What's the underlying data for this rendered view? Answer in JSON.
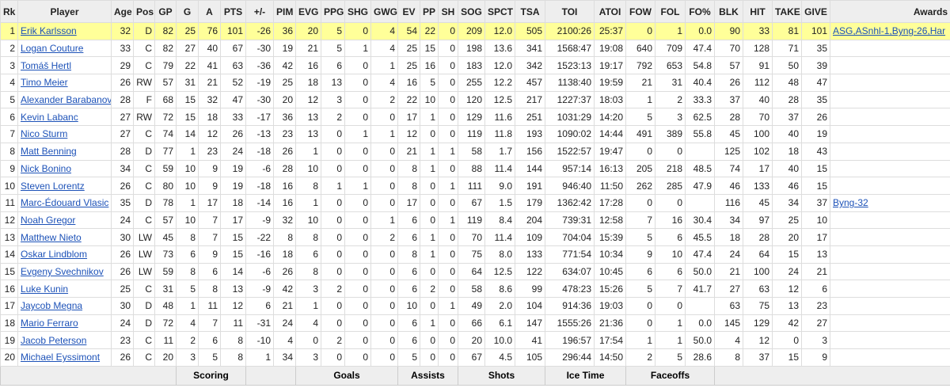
{
  "table": {
    "columns": [
      "Rk",
      "Player",
      "Age",
      "Pos",
      "GP",
      "G",
      "A",
      "PTS",
      "+/-",
      "PIM",
      "EVG",
      "PPG",
      "SHG",
      "GWG",
      "EV",
      "PP",
      "SH",
      "SOG",
      "SPCT",
      "TSA",
      "TOI",
      "ATOI",
      "FOW",
      "FOL",
      "FO%",
      "BLK",
      "HIT",
      "TAKE",
      "GIVE",
      "Awards"
    ],
    "rows": [
      [
        "1",
        "Erik Karlsson",
        "32",
        "D",
        "82",
        "25",
        "76",
        "101",
        "-26",
        "36",
        "20",
        "5",
        "0",
        "4",
        "54",
        "22",
        "0",
        "209",
        "12.0",
        "505",
        "2100:26",
        "25:37",
        "0",
        "1",
        "0.0",
        "90",
        "33",
        "81",
        "101",
        "ASG,ASnhl-1,Byng-26,Har"
      ],
      [
        "2",
        "Logan Couture",
        "33",
        "C",
        "82",
        "27",
        "40",
        "67",
        "-30",
        "19",
        "21",
        "5",
        "1",
        "4",
        "25",
        "15",
        "0",
        "198",
        "13.6",
        "341",
        "1568:47",
        "19:08",
        "640",
        "709",
        "47.4",
        "70",
        "128",
        "71",
        "35",
        null
      ],
      [
        "3",
        "Tomáš Hertl",
        "29",
        "C",
        "79",
        "22",
        "41",
        "63",
        "-36",
        "42",
        "16",
        "6",
        "0",
        "1",
        "25",
        "16",
        "0",
        "183",
        "12.0",
        "342",
        "1523:13",
        "19:17",
        "792",
        "653",
        "54.8",
        "57",
        "91",
        "50",
        "39",
        null
      ],
      [
        "4",
        "Timo Meier",
        "26",
        "RW",
        "57",
        "31",
        "21",
        "52",
        "-19",
        "25",
        "18",
        "13",
        "0",
        "4",
        "16",
        "5",
        "0",
        "255",
        "12.2",
        "457",
        "1138:40",
        "19:59",
        "21",
        "31",
        "40.4",
        "26",
        "112",
        "48",
        "47",
        null
      ],
      [
        "5",
        "Alexander Barabanov",
        "28",
        "F",
        "68",
        "15",
        "32",
        "47",
        "-30",
        "20",
        "12",
        "3",
        "0",
        "2",
        "22",
        "10",
        "0",
        "120",
        "12.5",
        "217",
        "1227:37",
        "18:03",
        "1",
        "2",
        "33.3",
        "37",
        "40",
        "28",
        "35",
        null
      ],
      [
        "6",
        "Kevin Labanc",
        "27",
        "RW",
        "72",
        "15",
        "18",
        "33",
        "-17",
        "36",
        "13",
        "2",
        "0",
        "0",
        "17",
        "1",
        "0",
        "129",
        "11.6",
        "251",
        "1031:29",
        "14:20",
        "5",
        "3",
        "62.5",
        "28",
        "70",
        "37",
        "26",
        null
      ],
      [
        "7",
        "Nico Sturm",
        "27",
        "C",
        "74",
        "14",
        "12",
        "26",
        "-13",
        "23",
        "13",
        "0",
        "1",
        "1",
        "12",
        "0",
        "0",
        "119",
        "11.8",
        "193",
        "1090:02",
        "14:44",
        "491",
        "389",
        "55.8",
        "45",
        "100",
        "40",
        "19",
        null
      ],
      [
        "8",
        "Matt Benning",
        "28",
        "D",
        "77",
        "1",
        "23",
        "24",
        "-18",
        "26",
        "1",
        "0",
        "0",
        "0",
        "21",
        "1",
        "1",
        "58",
        "1.7",
        "156",
        "1522:57",
        "19:47",
        "0",
        "0",
        null,
        "125",
        "102",
        "18",
        "43",
        null
      ],
      [
        "9",
        "Nick Bonino",
        "34",
        "C",
        "59",
        "10",
        "9",
        "19",
        "-6",
        "28",
        "10",
        "0",
        "0",
        "0",
        "8",
        "1",
        "0",
        "88",
        "11.4",
        "144",
        "957:14",
        "16:13",
        "205",
        "218",
        "48.5",
        "74",
        "17",
        "40",
        "15",
        null
      ],
      [
        "10",
        "Steven Lorentz",
        "26",
        "C",
        "80",
        "10",
        "9",
        "19",
        "-18",
        "16",
        "8",
        "1",
        "1",
        "0",
        "8",
        "0",
        "1",
        "111",
        "9.0",
        "191",
        "946:40",
        "11:50",
        "262",
        "285",
        "47.9",
        "46",
        "133",
        "46",
        "15",
        null
      ],
      [
        "11",
        "Marc-Édouard Vlasic",
        "35",
        "D",
        "78",
        "1",
        "17",
        "18",
        "-14",
        "16",
        "1",
        "0",
        "0",
        "0",
        "17",
        "0",
        "0",
        "67",
        "1.5",
        "179",
        "1362:42",
        "17:28",
        "0",
        "0",
        null,
        "116",
        "45",
        "34",
        "37",
        "Byng-32"
      ],
      [
        "12",
        "Noah Gregor",
        "24",
        "C",
        "57",
        "10",
        "7",
        "17",
        "-9",
        "32",
        "10",
        "0",
        "0",
        "1",
        "6",
        "0",
        "1",
        "119",
        "8.4",
        "204",
        "739:31",
        "12:58",
        "7",
        "16",
        "30.4",
        "34",
        "97",
        "25",
        "10",
        null
      ],
      [
        "13",
        "Matthew Nieto",
        "30",
        "LW",
        "45",
        "8",
        "7",
        "15",
        "-22",
        "8",
        "8",
        "0",
        "0",
        "2",
        "6",
        "1",
        "0",
        "70",
        "11.4",
        "109",
        "704:04",
        "15:39",
        "5",
        "6",
        "45.5",
        "18",
        "28",
        "20",
        "17",
        null
      ],
      [
        "14",
        "Oskar Lindblom",
        "26",
        "LW",
        "73",
        "6",
        "9",
        "15",
        "-16",
        "18",
        "6",
        "0",
        "0",
        "0",
        "8",
        "1",
        "0",
        "75",
        "8.0",
        "133",
        "771:54",
        "10:34",
        "9",
        "10",
        "47.4",
        "24",
        "64",
        "15",
        "13",
        null
      ],
      [
        "15",
        "Evgeny Svechnikov",
        "26",
        "LW",
        "59",
        "8",
        "6",
        "14",
        "-6",
        "26",
        "8",
        "0",
        "0",
        "0",
        "6",
        "0",
        "0",
        "64",
        "12.5",
        "122",
        "634:07",
        "10:45",
        "6",
        "6",
        "50.0",
        "21",
        "100",
        "24",
        "21",
        null
      ],
      [
        "16",
        "Luke Kunin",
        "25",
        "C",
        "31",
        "5",
        "8",
        "13",
        "-9",
        "42",
        "3",
        "2",
        "0",
        "0",
        "6",
        "2",
        "0",
        "58",
        "8.6",
        "99",
        "478:23",
        "15:26",
        "5",
        "7",
        "41.7",
        "27",
        "63",
        "12",
        "6",
        null
      ],
      [
        "17",
        "Jaycob Megna",
        "30",
        "D",
        "48",
        "1",
        "11",
        "12",
        "6",
        "21",
        "1",
        "0",
        "0",
        "0",
        "10",
        "0",
        "1",
        "49",
        "2.0",
        "104",
        "914:36",
        "19:03",
        "0",
        "0",
        null,
        "63",
        "75",
        "13",
        "23",
        null
      ],
      [
        "18",
        "Mario Ferraro",
        "24",
        "D",
        "72",
        "4",
        "7",
        "11",
        "-31",
        "24",
        "4",
        "0",
        "0",
        "0",
        "6",
        "1",
        "0",
        "66",
        "6.1",
        "147",
        "1555:26",
        "21:36",
        "0",
        "1",
        "0.0",
        "145",
        "129",
        "42",
        "27",
        null
      ],
      [
        "19",
        "Jacob Peterson",
        "23",
        "C",
        "11",
        "2",
        "6",
        "8",
        "-10",
        "4",
        "0",
        "2",
        "0",
        "0",
        "6",
        "0",
        "0",
        "20",
        "10.0",
        "41",
        "196:57",
        "17:54",
        "1",
        "1",
        "50.0",
        "4",
        "12",
        "0",
        "3",
        null
      ],
      [
        "20",
        "Michael Eyssimont",
        "26",
        "C",
        "20",
        "3",
        "5",
        "8",
        "1",
        "34",
        "3",
        "0",
        "0",
        "0",
        "5",
        "0",
        "0",
        "67",
        "4.5",
        "105",
        "296:44",
        "14:50",
        "2",
        "5",
        "28.6",
        "8",
        "37",
        "15",
        "9",
        null
      ]
    ],
    "groups": [
      "Scoring",
      "Goals",
      "Assists",
      "Shots",
      "Ice Time",
      "Faceoffs"
    ]
  }
}
